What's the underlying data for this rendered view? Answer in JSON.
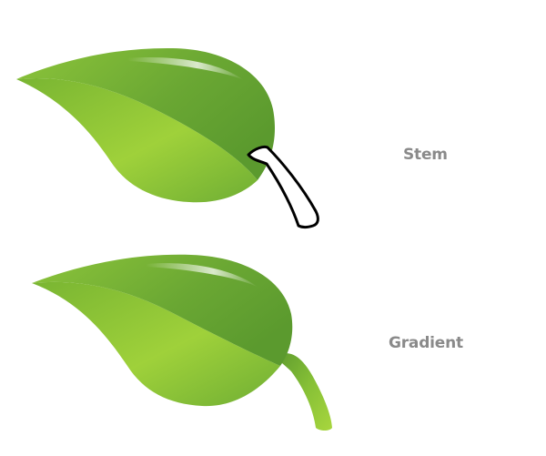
{
  "labels": {
    "stem": "Stem",
    "gradient": "Gradient"
  },
  "colors": {
    "leaf_light": "#9fd13a",
    "leaf_mid": "#86c036",
    "leaf_dark": "#5f9e2f",
    "stem_outline": "#000000",
    "label_text": "#8a8a8a"
  },
  "illustrations": [
    {
      "name": "leaf-with-stem-outline",
      "stem_style": "outline"
    },
    {
      "name": "leaf-with-gradient-stem",
      "stem_style": "gradient"
    }
  ]
}
